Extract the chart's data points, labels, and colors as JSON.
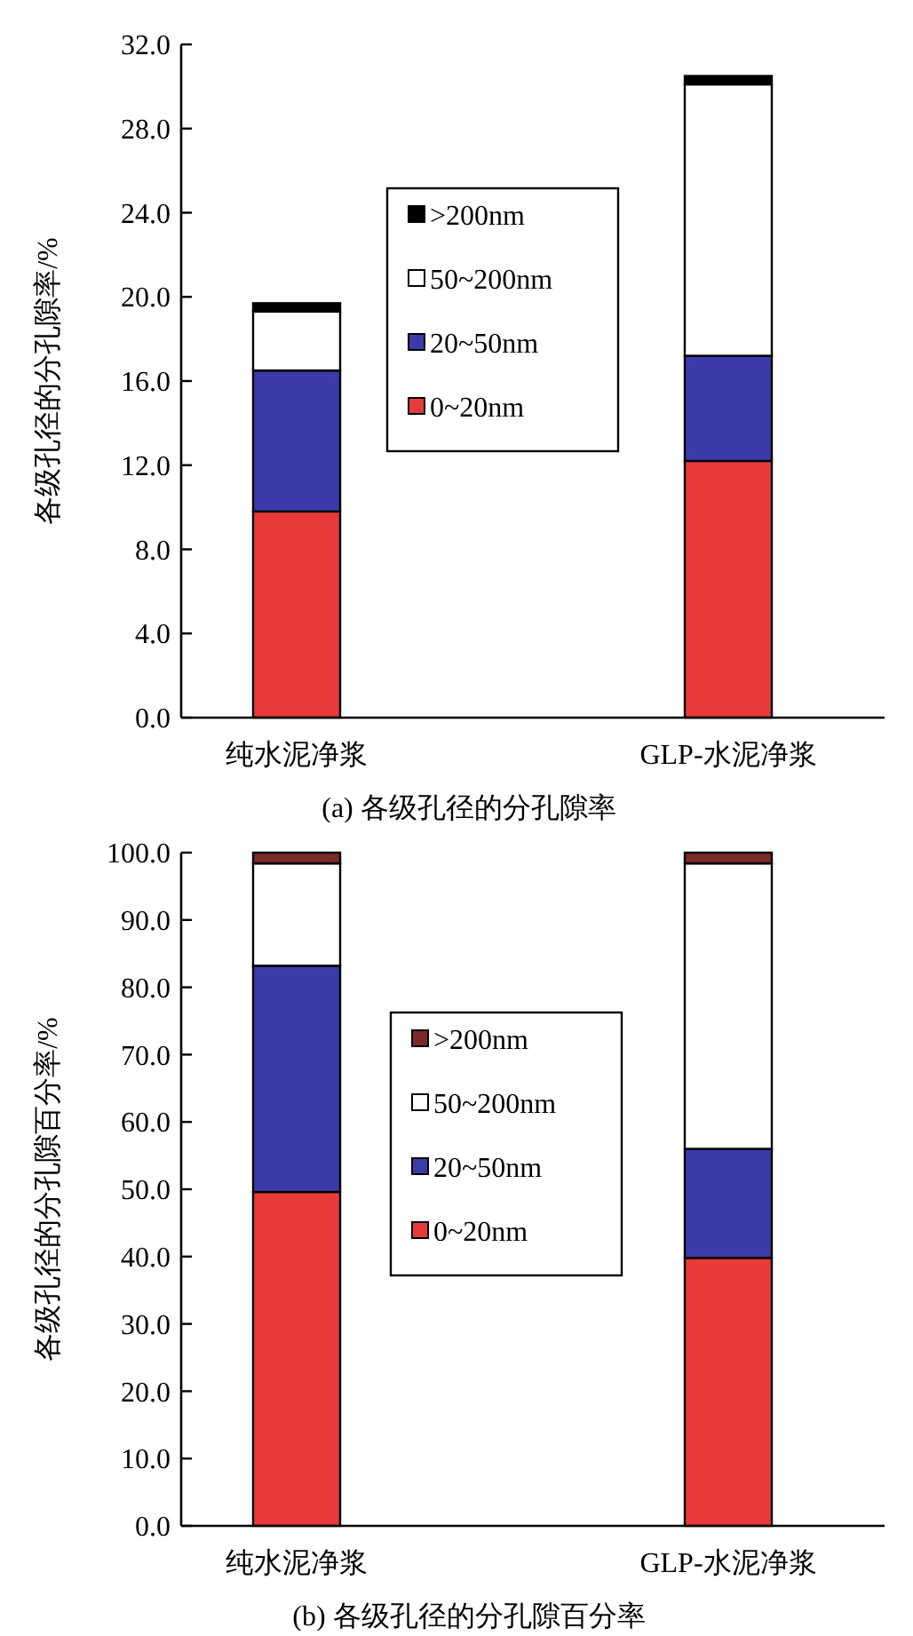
{
  "chart_data": [
    {
      "type": "bar",
      "stacked": true,
      "title": "(a) 各级孔径的分孔隙率",
      "ylabel": "各级孔径的分孔隙率/%",
      "categories": [
        "纯水泥净浆",
        "GLP-水泥净浆"
      ],
      "series": [
        {
          "name": "0~20nm",
          "color": "#e83a3a",
          "values": [
            9.8,
            12.2
          ]
        },
        {
          "name": "20~50nm",
          "color": "#3a3aa8",
          "values": [
            6.7,
            5.0
          ]
        },
        {
          "name": "50~200nm",
          "color": "#ffffff",
          "values": [
            2.8,
            12.9
          ]
        },
        {
          "name": ">200nm",
          "color": "#000000",
          "values": [
            0.4,
            0.4
          ]
        }
      ],
      "ylim": [
        0,
        32
      ],
      "yticks": [
        {
          "value": 0,
          "label": "0.0"
        },
        {
          "value": 4,
          "label": "4.0"
        },
        {
          "value": 8,
          "label": "8.0"
        },
        {
          "value": 12,
          "label": "12.0"
        },
        {
          "value": 16,
          "label": "16.0"
        },
        {
          "value": 20,
          "label": "20.0"
        },
        {
          "value": 24,
          "label": "24.0"
        },
        {
          "value": 28,
          "label": "28.0"
        },
        {
          "value": 32,
          "label": "32.0"
        }
      ],
      "grid": false,
      "legend": "top"
    },
    {
      "type": "bar",
      "stacked": true,
      "title": "(b) 各级孔径的分孔隙百分率",
      "ylabel": "各级孔径的分孔隙百分率/%",
      "categories": [
        "纯水泥净浆",
        "GLP-水泥净浆"
      ],
      "series": [
        {
          "name": "0~20nm",
          "color": "#e83a3a",
          "values": [
            49.6,
            39.8
          ]
        },
        {
          "name": "20~50nm",
          "color": "#3a3aa8",
          "values": [
            33.6,
            16.2
          ]
        },
        {
          "name": "50~200nm",
          "color": "#ffffff",
          "values": [
            15.2,
            42.4
          ]
        },
        {
          "name": ">200nm",
          "color": "#7a2a2a",
          "values": [
            1.6,
            1.6
          ]
        }
      ],
      "ylim": [
        0,
        100
      ],
      "yticks": [
        {
          "value": 0,
          "label": "0.0"
        },
        {
          "value": 10,
          "label": "10.0"
        },
        {
          "value": 20,
          "label": "20.0"
        },
        {
          "value": 30,
          "label": "30.0"
        },
        {
          "value": 40,
          "label": "40.0"
        },
        {
          "value": 50,
          "label": "50.0"
        },
        {
          "value": 60,
          "label": "60.0"
        },
        {
          "value": 70,
          "label": "70.0"
        },
        {
          "value": 80,
          "label": "80.0"
        },
        {
          "value": 90,
          "label": "90.0"
        },
        {
          "value": 100,
          "label": "100.0"
        }
      ],
      "grid": false,
      "legend": "center"
    }
  ]
}
